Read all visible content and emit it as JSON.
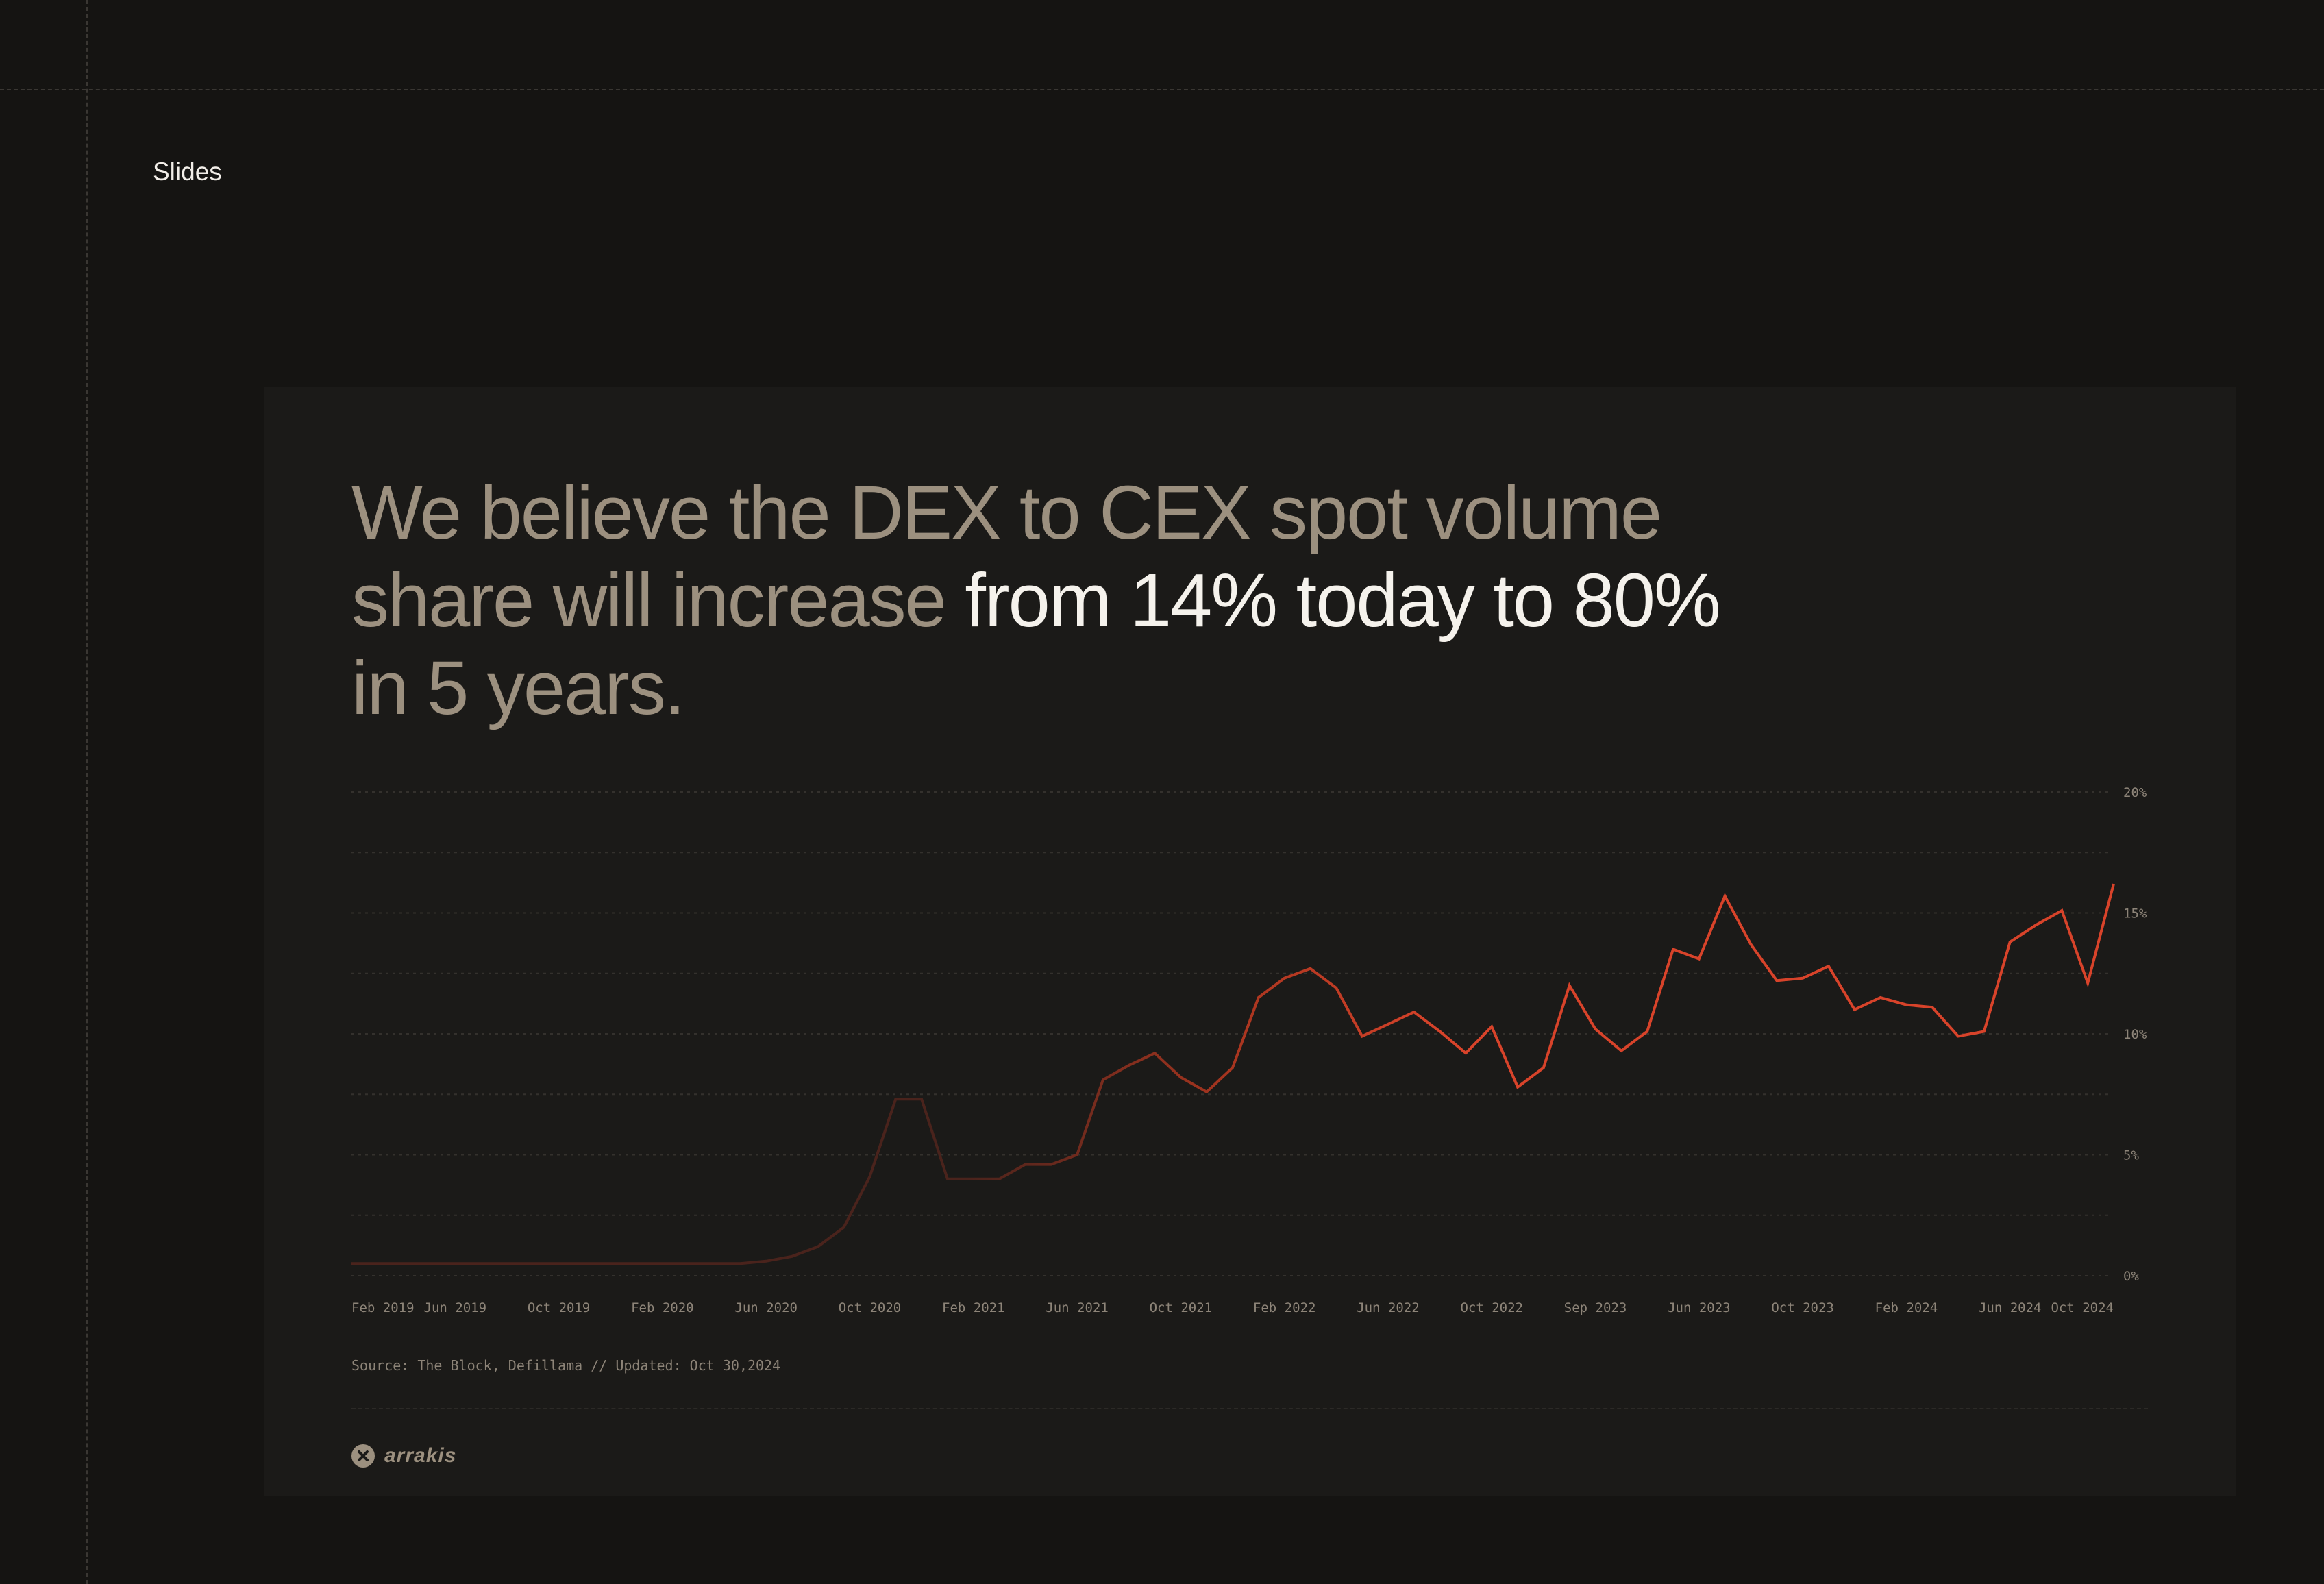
{
  "page": {
    "section_label": "Slides"
  },
  "slide": {
    "headline": {
      "part1": "We believe the DEX to CEX spot volume share will increase ",
      "highlight1": "from 14% today to 80%",
      "part2": " in 5 years."
    },
    "source": "Source: The Block, Defillama // Updated: Oct 30,2024",
    "logo_text": "arrakis",
    "colors": {
      "line_bright": "#d8432a",
      "line_dark": "#4a231c",
      "headline_muted": "#9c907f",
      "headline_highlight": "#f5f2ec"
    }
  },
  "chart_data": {
    "type": "line",
    "title": "",
    "xlabel": "",
    "ylabel": "",
    "ylim": [
      0,
      20
    ],
    "yticks": [
      0,
      5,
      10,
      15,
      20
    ],
    "ytick_labels": [
      "0%",
      "5%",
      "10%",
      "15%",
      "20%"
    ],
    "grid": true,
    "xtick_labels": [
      "Feb 2019",
      "Jun 2019",
      "Oct 2019",
      "Feb 2020",
      "Jun 2020",
      "Oct 2020",
      "Feb 2021",
      "Jun 2021",
      "Oct 2021",
      "Feb 2022",
      "Jun 2022",
      "Oct 2022",
      "Sep 2023",
      "Jun 2023",
      "Oct 2023",
      "Feb 2024",
      "Jun 2024",
      "Oct 2024"
    ],
    "series": [
      {
        "values": [
          0.5,
          0.5,
          0.5,
          0.5,
          0.5,
          0.5,
          0.5,
          0.5,
          0.5,
          0.5,
          0.5,
          0.5,
          0.5,
          0.5,
          0.5,
          0.5,
          0.6,
          0.8,
          1.2,
          2.0,
          4.1,
          7.3,
          7.3,
          4.0,
          4.0,
          4.0,
          4.6,
          4.6,
          5.0,
          8.1,
          8.7,
          9.2,
          8.2,
          7.6,
          8.6,
          11.5,
          12.3,
          12.7,
          11.9,
          9.9,
          10.4,
          10.9,
          10.1,
          9.2,
          10.3,
          7.8,
          8.6,
          12.0,
          10.2,
          9.3,
          10.1,
          13.5,
          13.1,
          15.7,
          13.7,
          12.2,
          12.3,
          12.8,
          11.0,
          11.5,
          11.2,
          11.1,
          9.9,
          10.1,
          13.8,
          14.5,
          15.1,
          12.1,
          16.2
        ]
      }
    ]
  }
}
